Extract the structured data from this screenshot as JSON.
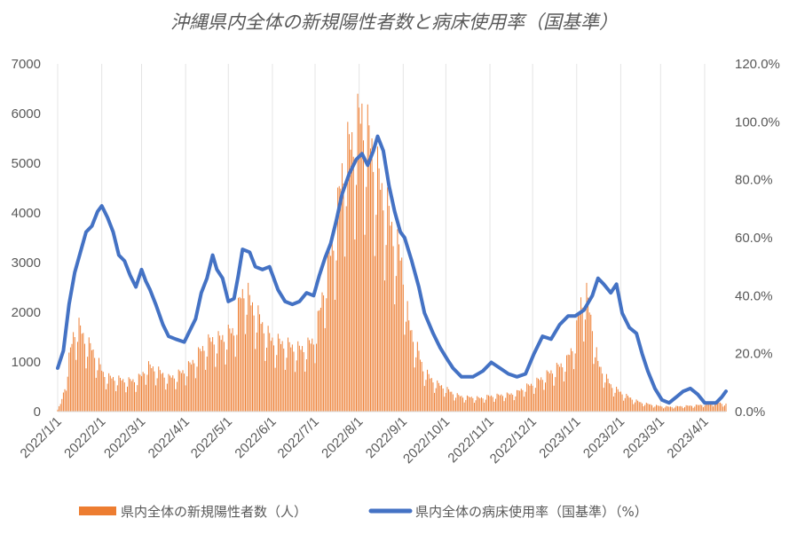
{
  "chart_data": {
    "type": "bar+line",
    "title": "沖縄県内全体の新規陽性者数と病床使用率（国基準）",
    "xlabel": "",
    "ylabel_left": "",
    "ylabel_right": "",
    "x_range": [
      "2022-01-01",
      "2023-04-16"
    ],
    "x_ticks": [
      "2022/1/1",
      "2022/2/1",
      "2022/3/1",
      "2022/4/1",
      "2022/5/1",
      "2022/6/1",
      "2022/7/1",
      "2022/8/1",
      "2022/9/1",
      "2022/10/1",
      "2022/11/1",
      "2022/12/1",
      "2023/1/1",
      "2023/2/1",
      "2023/3/1",
      "2023/4/1"
    ],
    "y_left": {
      "min": 0,
      "max": 7000,
      "ticks": [
        "0",
        "1000",
        "2000",
        "3000",
        "4000",
        "5000",
        "6000",
        "7000"
      ]
    },
    "y_right": {
      "min": 0,
      "max": 120,
      "ticks": [
        "0.0%",
        "20.0%",
        "40.0%",
        "60.0%",
        "80.0%",
        "100.0%",
        "120.0%"
      ]
    },
    "grid": "vertical gridlines at month ticks",
    "legend_position": "bottom",
    "series": [
      {
        "name": "県内全体の新規陽性者数（人）",
        "kind": "bar",
        "axis": "left",
        "color": "#ED7D31",
        "points": [
          [
            "2022-01-01",
            50
          ],
          [
            "2022-01-03",
            150
          ],
          [
            "2022-01-06",
            500
          ],
          [
            "2022-01-09",
            1100
          ],
          [
            "2022-01-12",
            1600
          ],
          [
            "2022-01-15",
            1800
          ],
          [
            "2022-01-18",
            1650
          ],
          [
            "2022-01-21",
            1450
          ],
          [
            "2022-01-24",
            1350
          ],
          [
            "2022-01-27",
            1200
          ],
          [
            "2022-01-30",
            1000
          ],
          [
            "2022-02-02",
            800
          ],
          [
            "2022-02-05",
            720
          ],
          [
            "2022-02-10",
            690
          ],
          [
            "2022-02-15",
            660
          ],
          [
            "2022-02-20",
            640
          ],
          [
            "2022-02-25",
            660
          ],
          [
            "2022-03-01",
            750
          ],
          [
            "2022-03-05",
            950
          ],
          [
            "2022-03-10",
            900
          ],
          [
            "2022-03-15",
            800
          ],
          [
            "2022-03-20",
            700
          ],
          [
            "2022-03-25",
            750
          ],
          [
            "2022-03-31",
            850
          ],
          [
            "2022-04-05",
            1000
          ],
          [
            "2022-04-10",
            1200
          ],
          [
            "2022-04-15",
            1400
          ],
          [
            "2022-04-20",
            1500
          ],
          [
            "2022-04-25",
            1500
          ],
          [
            "2022-04-30",
            1600
          ],
          [
            "2022-05-05",
            1700
          ],
          [
            "2022-05-10",
            2400
          ],
          [
            "2022-05-13",
            2600
          ],
          [
            "2022-05-16",
            2300
          ],
          [
            "2022-05-20",
            2100
          ],
          [
            "2022-05-25",
            1800
          ],
          [
            "2022-05-31",
            1500
          ],
          [
            "2022-06-05",
            1450
          ],
          [
            "2022-06-10",
            1400
          ],
          [
            "2022-06-15",
            1350
          ],
          [
            "2022-06-20",
            1300
          ],
          [
            "2022-06-25",
            1350
          ],
          [
            "2022-06-30",
            1500
          ],
          [
            "2022-07-04",
            2000
          ],
          [
            "2022-07-08",
            2800
          ],
          [
            "2022-07-12",
            3300
          ],
          [
            "2022-07-16",
            3900
          ],
          [
            "2022-07-20",
            5000
          ],
          [
            "2022-07-24",
            5400
          ],
          [
            "2022-07-28",
            5700
          ],
          [
            "2022-08-01",
            6000
          ],
          [
            "2022-08-03",
            6200
          ],
          [
            "2022-08-06",
            5800
          ],
          [
            "2022-08-10",
            5500
          ],
          [
            "2022-08-15",
            4800
          ],
          [
            "2022-08-20",
            4300
          ],
          [
            "2022-08-25",
            3700
          ],
          [
            "2022-08-31",
            3100
          ],
          [
            "2022-09-05",
            1800
          ],
          [
            "2022-09-10",
            1400
          ],
          [
            "2022-09-15",
            900
          ],
          [
            "2022-09-20",
            700
          ],
          [
            "2022-09-25",
            580
          ],
          [
            "2022-09-30",
            500
          ],
          [
            "2022-10-05",
            400
          ],
          [
            "2022-10-10",
            330
          ],
          [
            "2022-10-15",
            300
          ],
          [
            "2022-10-20",
            300
          ],
          [
            "2022-10-25",
            280
          ],
          [
            "2022-10-31",
            320
          ],
          [
            "2022-11-05",
            330
          ],
          [
            "2022-11-10",
            350
          ],
          [
            "2022-11-15",
            360
          ],
          [
            "2022-11-20",
            400
          ],
          [
            "2022-11-25",
            500
          ],
          [
            "2022-11-30",
            560
          ],
          [
            "2022-12-05",
            650
          ],
          [
            "2022-12-10",
            750
          ],
          [
            "2022-12-15",
            850
          ],
          [
            "2022-12-20",
            950
          ],
          [
            "2022-12-25",
            1050
          ],
          [
            "2022-12-31",
            1500
          ],
          [
            "2023-01-04",
            2300
          ],
          [
            "2023-01-08",
            2400
          ],
          [
            "2023-01-12",
            1800
          ],
          [
            "2023-01-16",
            1000
          ],
          [
            "2023-01-20",
            800
          ],
          [
            "2023-01-25",
            550
          ],
          [
            "2023-01-31",
            420
          ],
          [
            "2023-02-05",
            330
          ],
          [
            "2023-02-10",
            250
          ],
          [
            "2023-02-15",
            190
          ],
          [
            "2023-02-20",
            160
          ],
          [
            "2023-02-25",
            130
          ],
          [
            "2023-03-02",
            110
          ],
          [
            "2023-03-08",
            100
          ],
          [
            "2023-03-14",
            110
          ],
          [
            "2023-03-20",
            120
          ],
          [
            "2023-03-26",
            130
          ],
          [
            "2023-04-01",
            150
          ],
          [
            "2023-04-06",
            170
          ],
          [
            "2023-04-11",
            190
          ],
          [
            "2023-04-16",
            150
          ]
        ]
      },
      {
        "name": "県内全体の病床使用率（国基準）（%）",
        "kind": "line",
        "axis": "right",
        "color": "#4472C4",
        "points": [
          [
            "2022-01-01",
            15
          ],
          [
            "2022-01-05",
            21
          ],
          [
            "2022-01-09",
            37
          ],
          [
            "2022-01-13",
            48
          ],
          [
            "2022-01-17",
            55
          ],
          [
            "2022-01-21",
            62
          ],
          [
            "2022-01-25",
            64
          ],
          [
            "2022-01-29",
            69
          ],
          [
            "2022-02-01",
            71
          ],
          [
            "2022-02-05",
            67
          ],
          [
            "2022-02-09",
            62
          ],
          [
            "2022-02-13",
            54
          ],
          [
            "2022-02-17",
            52
          ],
          [
            "2022-02-21",
            47
          ],
          [
            "2022-02-25",
            43
          ],
          [
            "2022-03-01",
            49
          ],
          [
            "2022-03-04",
            45
          ],
          [
            "2022-03-07",
            42
          ],
          [
            "2022-03-11",
            37
          ],
          [
            "2022-03-16",
            30
          ],
          [
            "2022-03-20",
            26
          ],
          [
            "2022-03-25",
            25
          ],
          [
            "2022-03-31",
            24
          ],
          [
            "2022-04-04",
            28
          ],
          [
            "2022-04-08",
            32
          ],
          [
            "2022-04-12",
            41
          ],
          [
            "2022-04-16",
            46
          ],
          [
            "2022-04-20",
            54
          ],
          [
            "2022-04-23",
            49
          ],
          [
            "2022-04-27",
            46
          ],
          [
            "2022-05-01",
            38
          ],
          [
            "2022-05-05",
            39
          ],
          [
            "2022-05-08",
            47
          ],
          [
            "2022-05-11",
            56
          ],
          [
            "2022-05-16",
            55
          ],
          [
            "2022-05-20",
            50
          ],
          [
            "2022-05-25",
            49
          ],
          [
            "2022-05-30",
            50
          ],
          [
            "2022-06-05",
            42
          ],
          [
            "2022-06-10",
            38
          ],
          [
            "2022-06-15",
            37
          ],
          [
            "2022-06-20",
            38
          ],
          [
            "2022-06-25",
            41
          ],
          [
            "2022-06-30",
            40
          ],
          [
            "2022-07-04",
            47
          ],
          [
            "2022-07-08",
            53
          ],
          [
            "2022-07-12",
            58
          ],
          [
            "2022-07-16",
            66
          ],
          [
            "2022-07-20",
            75
          ],
          [
            "2022-07-25",
            82
          ],
          [
            "2022-07-30",
            87
          ],
          [
            "2022-08-03",
            89
          ],
          [
            "2022-08-07",
            85
          ],
          [
            "2022-08-11",
            90
          ],
          [
            "2022-08-14",
            95
          ],
          [
            "2022-08-18",
            90
          ],
          [
            "2022-08-22",
            78
          ],
          [
            "2022-08-26",
            69
          ],
          [
            "2022-08-30",
            62
          ],
          [
            "2022-09-02",
            60
          ],
          [
            "2022-09-07",
            52
          ],
          [
            "2022-09-12",
            43
          ],
          [
            "2022-09-16",
            34
          ],
          [
            "2022-09-22",
            27
          ],
          [
            "2022-09-27",
            22
          ],
          [
            "2022-10-02",
            18
          ],
          [
            "2022-10-06",
            15
          ],
          [
            "2022-10-12",
            12
          ],
          [
            "2022-10-20",
            12
          ],
          [
            "2022-10-27",
            14
          ],
          [
            "2022-11-02",
            17
          ],
          [
            "2022-11-08",
            15
          ],
          [
            "2022-11-14",
            13
          ],
          [
            "2022-11-20",
            12
          ],
          [
            "2022-11-26",
            13
          ],
          [
            "2022-12-02",
            20
          ],
          [
            "2022-12-08",
            26
          ],
          [
            "2022-12-14",
            25
          ],
          [
            "2022-12-20",
            30
          ],
          [
            "2022-12-26",
            33
          ],
          [
            "2022-12-31",
            33
          ],
          [
            "2023-01-06",
            35
          ],
          [
            "2023-01-12",
            40
          ],
          [
            "2023-01-16",
            46
          ],
          [
            "2023-01-20",
            44
          ],
          [
            "2023-01-25",
            41
          ],
          [
            "2023-01-29",
            44
          ],
          [
            "2023-02-02",
            34
          ],
          [
            "2023-02-07",
            29
          ],
          [
            "2023-02-12",
            27
          ],
          [
            "2023-02-16",
            20
          ],
          [
            "2023-02-20",
            14
          ],
          [
            "2023-02-25",
            8
          ],
          [
            "2023-03-02",
            4
          ],
          [
            "2023-03-07",
            3
          ],
          [
            "2023-03-12",
            5
          ],
          [
            "2023-03-17",
            7
          ],
          [
            "2023-03-22",
            8
          ],
          [
            "2023-03-27",
            6
          ],
          [
            "2023-04-01",
            3
          ],
          [
            "2023-04-05",
            3
          ],
          [
            "2023-04-09",
            3
          ],
          [
            "2023-04-13",
            5
          ],
          [
            "2023-04-16",
            7
          ]
        ]
      }
    ]
  },
  "legend": {
    "bar_label": "県内全体の新規陽性者数（人）",
    "line_label": "県内全体の病床使用率（国基準）（%）"
  }
}
